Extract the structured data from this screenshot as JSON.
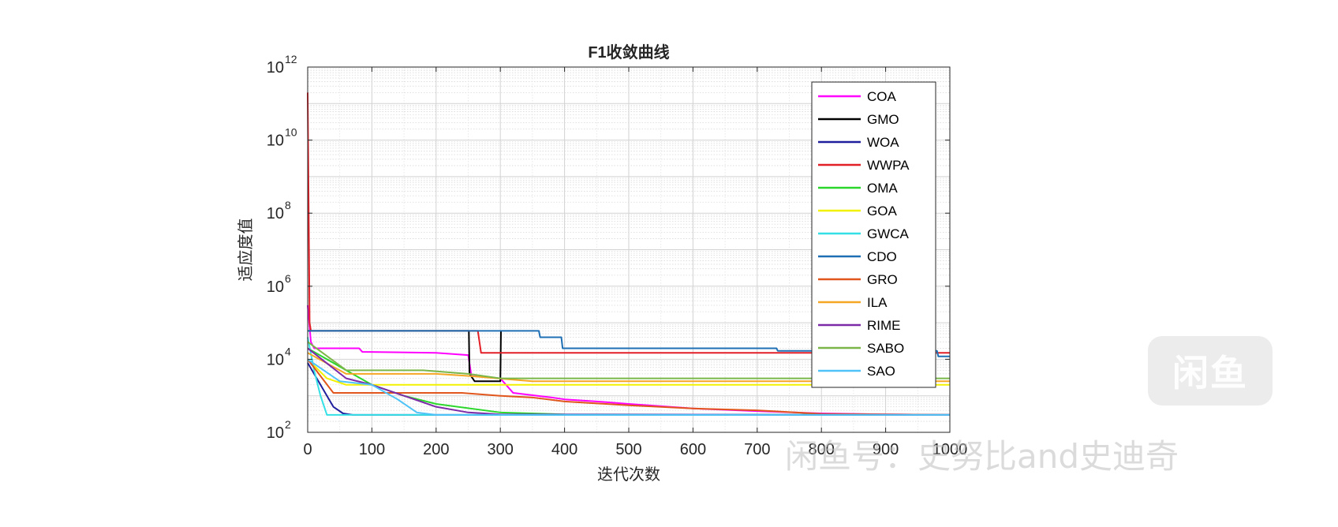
{
  "chart_data": {
    "type": "line",
    "title": "F1收敛曲线",
    "xlabel": "迭代次数",
    "ylabel": "适应度值",
    "xlim": [
      0,
      1000
    ],
    "ylim_log10": [
      2,
      12
    ],
    "yscale": "log",
    "grid": true,
    "minor_grid": true,
    "legend_position": "top-right",
    "xticks": [
      "0",
      "100",
      "200",
      "300",
      "400",
      "500",
      "600",
      "700",
      "800",
      "900",
      "1000"
    ],
    "yticks": [
      {
        "base": "10",
        "exp": "2"
      },
      {
        "base": "10",
        "exp": "4"
      },
      {
        "base": "10",
        "exp": "6"
      },
      {
        "base": "10",
        "exp": "8"
      },
      {
        "base": "10",
        "exp": "10"
      },
      {
        "base": "10",
        "exp": "12"
      }
    ],
    "series": [
      {
        "name": "COA",
        "color": "#ff00ff",
        "points": [
          [
            0,
            300000
          ],
          [
            5,
            30000
          ],
          [
            10,
            20000
          ],
          [
            80,
            20000
          ],
          [
            85,
            16000
          ],
          [
            200,
            15000
          ],
          [
            250,
            13000
          ],
          [
            255,
            3500
          ],
          [
            300,
            3000
          ],
          [
            320,
            1200
          ],
          [
            380,
            900
          ],
          [
            400,
            800
          ],
          [
            450,
            700
          ],
          [
            500,
            600
          ],
          [
            600,
            450
          ],
          [
            700,
            380
          ],
          [
            800,
            330
          ],
          [
            900,
            310
          ],
          [
            1000,
            300
          ]
        ]
      },
      {
        "name": "GMO",
        "color": "#000000",
        "points": [
          [
            0,
            60000
          ],
          [
            250,
            60000
          ],
          [
            251,
            60000
          ],
          [
            252,
            4000
          ],
          [
            260,
            2500
          ],
          [
            300,
            2500
          ],
          [
            301,
            60000
          ]
        ]
      },
      {
        "name": "WOA",
        "color": "#1f1f9e",
        "points": [
          [
            0,
            8000
          ],
          [
            10,
            4000
          ],
          [
            20,
            2000
          ],
          [
            30,
            1000
          ],
          [
            40,
            500
          ],
          [
            55,
            330
          ],
          [
            70,
            300
          ],
          [
            1000,
            300
          ]
        ]
      },
      {
        "name": "WWPA",
        "color": "#e21f26",
        "points": [
          [
            0,
            200000000000
          ],
          [
            3,
            100000
          ],
          [
            5,
            60000
          ],
          [
            240,
            60000
          ],
          [
            265,
            60000
          ],
          [
            270,
            15000
          ],
          [
            1000,
            15000
          ]
        ]
      },
      {
        "name": "OMA",
        "color": "#2bd62b",
        "points": [
          [
            0,
            20000
          ],
          [
            30,
            10000
          ],
          [
            60,
            5000
          ],
          [
            100,
            2000
          ],
          [
            150,
            1000
          ],
          [
            200,
            600
          ],
          [
            300,
            350
          ],
          [
            400,
            310
          ],
          [
            1000,
            300
          ]
        ]
      },
      {
        "name": "GOA",
        "color": "#f2f200",
        "points": [
          [
            0,
            10000
          ],
          [
            30,
            3000
          ],
          [
            60,
            2000
          ],
          [
            1000,
            2000
          ]
        ]
      },
      {
        "name": "GWCA",
        "color": "#34e0e6",
        "points": [
          [
            0,
            40000
          ],
          [
            10,
            5000
          ],
          [
            20,
            1000
          ],
          [
            30,
            300
          ],
          [
            1000,
            300
          ]
        ]
      },
      {
        "name": "CDO",
        "color": "#1f6fb4",
        "points": [
          [
            0,
            60000
          ],
          [
            360,
            60000
          ],
          [
            362,
            40000
          ],
          [
            395,
            40000
          ],
          [
            397,
            20000
          ],
          [
            730,
            20000
          ],
          [
            732,
            17000
          ],
          [
            980,
            17000
          ],
          [
            982,
            12000
          ],
          [
            1000,
            12000
          ]
        ]
      },
      {
        "name": "GRO",
        "color": "#e0561c",
        "points": [
          [
            0,
            10000
          ],
          [
            40,
            1200
          ],
          [
            120,
            1200
          ],
          [
            240,
            1200
          ],
          [
            300,
            1000
          ],
          [
            350,
            900
          ],
          [
            400,
            700
          ],
          [
            500,
            550
          ],
          [
            600,
            450
          ],
          [
            700,
            400
          ],
          [
            800,
            320
          ],
          [
            1000,
            300
          ]
        ]
      },
      {
        "name": "ILA",
        "color": "#f5a623",
        "points": [
          [
            0,
            15000
          ],
          [
            60,
            4000
          ],
          [
            200,
            4000
          ],
          [
            250,
            3500
          ],
          [
            350,
            2500
          ],
          [
            1000,
            2500
          ]
        ]
      },
      {
        "name": "RIME",
        "color": "#7d2aa8",
        "points": [
          [
            0,
            20000
          ],
          [
            60,
            3000
          ],
          [
            100,
            2000
          ],
          [
            150,
            1000
          ],
          [
            200,
            500
          ],
          [
            250,
            350
          ],
          [
            300,
            310
          ],
          [
            1000,
            300
          ]
        ]
      },
      {
        "name": "SABO",
        "color": "#7ab648",
        "points": [
          [
            0,
            30000
          ],
          [
            60,
            5000
          ],
          [
            180,
            5000
          ],
          [
            250,
            4000
          ],
          [
            300,
            3000
          ],
          [
            1000,
            3000
          ]
        ]
      },
      {
        "name": "SAO",
        "color": "#4fc3f7",
        "points": [
          [
            0,
            10000
          ],
          [
            50,
            2500
          ],
          [
            100,
            2000
          ],
          [
            140,
            800
          ],
          [
            170,
            350
          ],
          [
            200,
            300
          ],
          [
            1000,
            300
          ]
        ]
      }
    ]
  },
  "watermark": {
    "logo_text": "闲鱼",
    "text": "闲鱼号：史努比and史迪奇"
  }
}
